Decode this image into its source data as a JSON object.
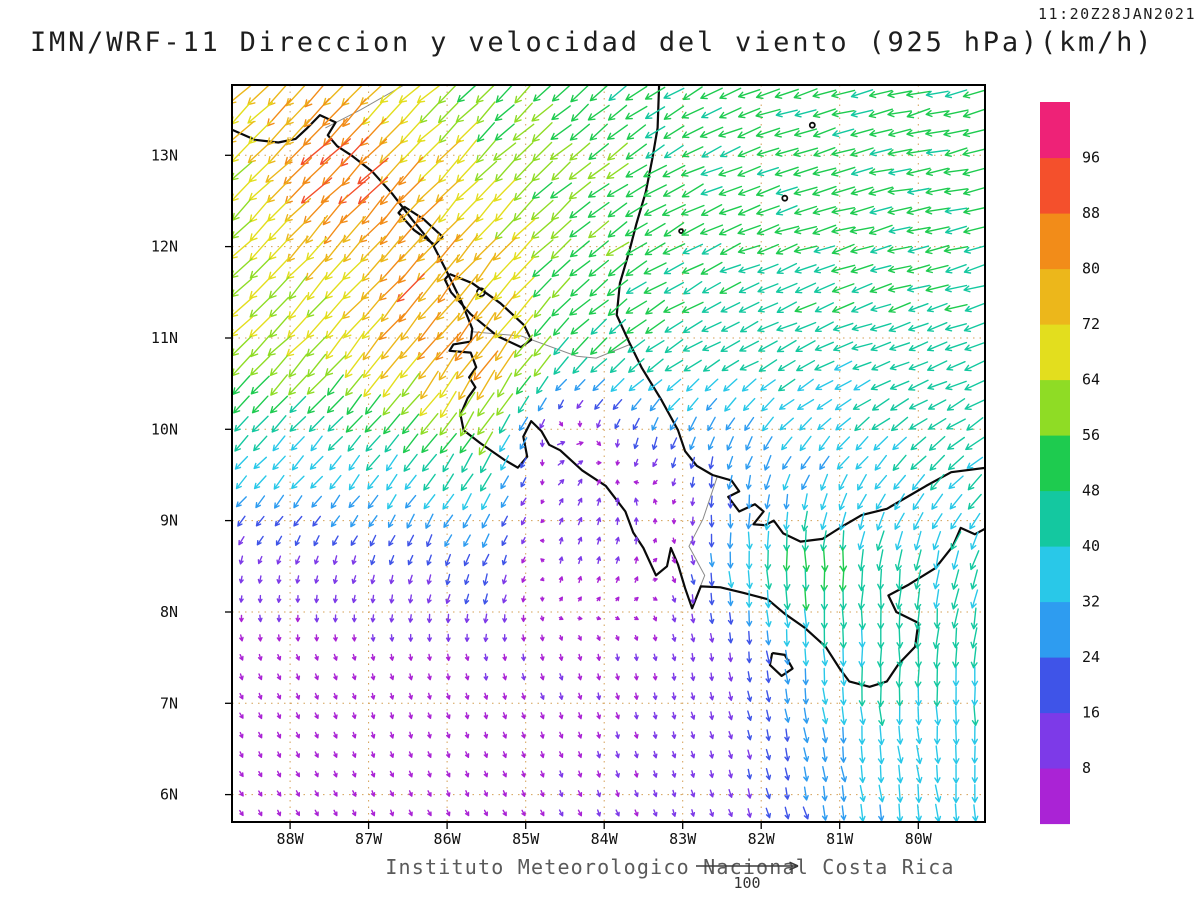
{
  "header": {
    "timestamp": "11:20Z28JAN2021",
    "title": "IMN/WRF-11 Direccion y velocidad del viento (925 hPa)(km/h)"
  },
  "footer": {
    "caption": "Instituto Meteorologico Nacional Costa Rica",
    "reference_arrow_label": "100"
  },
  "axes": {
    "lon_min": -88.74,
    "lon_max": -79.15,
    "lat_min": 5.7,
    "lat_max": 13.77,
    "lat_ticks": [
      {
        "label": "13N",
        "lat": 13
      },
      {
        "label": "12N",
        "lat": 12
      },
      {
        "label": "11N",
        "lat": 11
      },
      {
        "label": "10N",
        "lat": 10
      },
      {
        "label": "9N",
        "lat": 9
      },
      {
        "label": "8N",
        "lat": 8
      },
      {
        "label": "7N",
        "lat": 7
      },
      {
        "label": "6N",
        "lat": 6
      }
    ],
    "lon_ticks": [
      {
        "label": "88W",
        "lon": -88
      },
      {
        "label": "87W",
        "lon": -87
      },
      {
        "label": "86W",
        "lon": -86
      },
      {
        "label": "85W",
        "lon": -85
      },
      {
        "label": "84W",
        "lon": -84
      },
      {
        "label": "83W",
        "lon": -83
      },
      {
        "label": "82W",
        "lon": -82
      },
      {
        "label": "81W",
        "lon": -81
      },
      {
        "label": "80W",
        "lon": -80
      }
    ]
  },
  "colorbar": {
    "labels_top_to_bottom": [
      "96",
      "88",
      "80",
      "72",
      "64",
      "56",
      "48",
      "40",
      "32",
      "24",
      "16",
      "8"
    ],
    "thresholds_kmh": [
      8,
      16,
      24,
      32,
      40,
      48,
      56,
      64,
      72,
      80,
      88,
      96
    ],
    "colors_bottom_to_top": [
      "#aa23d5",
      "#7d3ae8",
      "#3f54e8",
      "#2e9cf0",
      "#29c8e8",
      "#14c8a0",
      "#1ecb4f",
      "#8fdc25",
      "#e3de1e",
      "#ecb71b",
      "#f28c19",
      "#f4502c",
      "#ee2277"
    ]
  },
  "chart_data": {
    "type": "vector_field",
    "title": "IMN/WRF-11 Direccion y velocidad del viento (925 hPa)(km/h)",
    "time": "11:20Z28JAN2021",
    "units": "km/h",
    "pressure_level_hPa": 925,
    "speed_scale_reference": 100,
    "lon_range": [
      -88.74,
      -79.15
    ],
    "lat_range": [
      5.7,
      13.77
    ],
    "grid": {
      "lons": [
        -88.7,
        -87.5,
        -86.5,
        -85.5,
        -84.5,
        -83.5,
        -82.5,
        -81.5,
        -80.5,
        -79.2
      ],
      "lats_north_to_south": [
        13.75,
        12.75,
        11.75,
        10.75,
        9.9,
        9.2,
        8.5,
        7.5,
        6.5,
        5.7
      ],
      "speed_kmh": [
        [
          76,
          80,
          64,
          56,
          52,
          50,
          50,
          50,
          50,
          50
        ],
        [
          60,
          94,
          80,
          64,
          56,
          52,
          50,
          50,
          50,
          50
        ],
        [
          64,
          68,
          84,
          72,
          56,
          52,
          48,
          48,
          48,
          48
        ],
        [
          60,
          64,
          76,
          82,
          48,
          44,
          42,
          42,
          44,
          44
        ],
        [
          40,
          42,
          48,
          56,
          14,
          24,
          28,
          34,
          40,
          44
        ],
        [
          28,
          30,
          34,
          36,
          12,
          10,
          24,
          32,
          36,
          40
        ],
        [
          10,
          12,
          16,
          22,
          10,
          8,
          30,
          56,
          44,
          40
        ],
        [
          7,
          7,
          7,
          8,
          8,
          8,
          12,
          32,
          44,
          42
        ],
        [
          7,
          7,
          7,
          7,
          8,
          8,
          10,
          26,
          36,
          36
        ],
        [
          7,
          7,
          7,
          7,
          8,
          8,
          10,
          24,
          34,
          34
        ]
      ],
      "direction_toward_deg_ccw_from_east": [
        [
          225,
          225,
          222,
          225,
          222,
          215,
          205,
          198,
          195,
          195
        ],
        [
          225,
          225,
          226,
          225,
          220,
          212,
          202,
          196,
          192,
          192
        ],
        [
          225,
          228,
          230,
          230,
          222,
          212,
          205,
          200,
          196,
          196
        ],
        [
          225,
          228,
          232,
          236,
          228,
          215,
          210,
          205,
          200,
          200
        ],
        [
          226,
          228,
          232,
          238,
          30,
          250,
          250,
          230,
          220,
          215
        ],
        [
          230,
          232,
          235,
          240,
          60,
          100,
          268,
          258,
          240,
          230
        ],
        [
          258,
          255,
          252,
          250,
          80,
          70,
          275,
          272,
          265,
          252
        ],
        [
          292,
          288,
          283,
          281,
          286,
          281,
          281,
          276,
          271,
          266
        ],
        [
          300,
          296,
          291,
          291,
          291,
          286,
          286,
          281,
          276,
          271
        ],
        [
          301,
          300,
          296,
          296,
          296,
          291,
          291,
          286,
          281,
          276
        ]
      ]
    },
    "map": {
      "coastlines": [
        [
          [
            -88.74,
            13.28
          ],
          [
            -88.45,
            13.17
          ],
          [
            -88.15,
            13.14
          ],
          [
            -87.93,
            13.18
          ],
          [
            -87.78,
            13.3
          ],
          [
            -87.62,
            13.44
          ],
          [
            -87.42,
            13.36
          ],
          [
            -87.52,
            13.22
          ],
          [
            -87.4,
            13.1
          ],
          [
            -87.22,
            13.0
          ],
          [
            -86.95,
            12.82
          ],
          [
            -86.7,
            12.58
          ],
          [
            -86.45,
            12.3
          ],
          [
            -86.18,
            12.02
          ],
          [
            -86.0,
            11.72
          ],
          [
            -85.82,
            11.4
          ],
          [
            -85.68,
            11.1
          ],
          [
            -85.7,
            10.96
          ],
          [
            -85.92,
            10.93
          ],
          [
            -85.97,
            10.86
          ],
          [
            -85.7,
            10.84
          ],
          [
            -85.63,
            10.68
          ],
          [
            -85.72,
            10.57
          ],
          [
            -85.64,
            10.46
          ],
          [
            -85.74,
            10.34
          ],
          [
            -85.83,
            10.16
          ],
          [
            -85.79,
            9.99
          ],
          [
            -85.58,
            9.85
          ],
          [
            -85.28,
            9.67
          ],
          [
            -85.1,
            9.58
          ],
          [
            -84.98,
            9.7
          ],
          [
            -85.03,
            9.92
          ],
          [
            -84.93,
            10.09
          ],
          [
            -84.8,
            9.98
          ],
          [
            -84.7,
            9.83
          ],
          [
            -84.56,
            9.77
          ],
          [
            -84.28,
            9.55
          ],
          [
            -83.98,
            9.38
          ],
          [
            -83.73,
            9.1
          ],
          [
            -83.63,
            8.87
          ],
          [
            -83.5,
            8.7
          ],
          [
            -83.34,
            8.4
          ],
          [
            -83.2,
            8.5
          ],
          [
            -83.15,
            8.7
          ],
          [
            -83.06,
            8.52
          ],
          [
            -82.97,
            8.26
          ],
          [
            -82.88,
            8.04
          ],
          [
            -82.77,
            8.28
          ],
          [
            -82.52,
            8.27
          ],
          [
            -82.23,
            8.21
          ],
          [
            -81.92,
            8.14
          ],
          [
            -81.7,
            7.98
          ],
          [
            -81.45,
            7.83
          ],
          [
            -81.18,
            7.62
          ],
          [
            -81.0,
            7.38
          ],
          [
            -80.88,
            7.24
          ],
          [
            -80.62,
            7.18
          ],
          [
            -80.4,
            7.24
          ],
          [
            -80.25,
            7.43
          ],
          [
            -80.04,
            7.62
          ],
          [
            -80.0,
            7.88
          ],
          [
            -80.28,
            8.0
          ],
          [
            -80.38,
            8.18
          ],
          [
            -80.12,
            8.3
          ],
          [
            -79.78,
            8.48
          ],
          [
            -79.56,
            8.72
          ],
          [
            -79.46,
            8.92
          ],
          [
            -79.28,
            8.85
          ],
          [
            -79.13,
            8.92
          ]
        ],
        [
          [
            -79.13,
            9.58
          ],
          [
            -79.58,
            9.53
          ],
          [
            -79.9,
            9.38
          ],
          [
            -80.12,
            9.27
          ],
          [
            -80.4,
            9.13
          ],
          [
            -80.72,
            9.06
          ],
          [
            -80.98,
            8.93
          ],
          [
            -81.22,
            8.8
          ],
          [
            -81.5,
            8.77
          ],
          [
            -81.72,
            8.86
          ],
          [
            -81.84,
            9.0
          ],
          [
            -81.95,
            8.95
          ],
          [
            -82.1,
            8.96
          ],
          [
            -81.97,
            9.1
          ],
          [
            -82.08,
            9.18
          ],
          [
            -82.28,
            9.1
          ],
          [
            -82.42,
            9.26
          ],
          [
            -82.28,
            9.32
          ],
          [
            -82.38,
            9.44
          ],
          [
            -82.62,
            9.5
          ],
          [
            -82.82,
            9.6
          ],
          [
            -82.97,
            9.76
          ],
          [
            -83.06,
            9.99
          ],
          [
            -83.27,
            10.32
          ],
          [
            -83.52,
            10.67
          ],
          [
            -83.68,
            10.95
          ],
          [
            -83.84,
            11.25
          ],
          [
            -83.8,
            11.6
          ],
          [
            -83.68,
            11.95
          ],
          [
            -83.59,
            12.25
          ],
          [
            -83.47,
            12.6
          ],
          [
            -83.39,
            12.95
          ],
          [
            -83.32,
            13.3
          ],
          [
            -83.3,
            13.77
          ]
        ],
        [
          [
            -85.97,
            11.7
          ],
          [
            -85.68,
            11.6
          ],
          [
            -85.32,
            11.38
          ],
          [
            -85.02,
            11.14
          ],
          [
            -84.93,
            10.98
          ],
          [
            -85.06,
            10.9
          ],
          [
            -85.36,
            11.02
          ],
          [
            -85.7,
            11.26
          ],
          [
            -85.95,
            11.5
          ],
          [
            -86.03,
            11.64
          ],
          [
            -85.97,
            11.7
          ]
        ],
        [
          [
            -86.55,
            12.44
          ],
          [
            -86.3,
            12.3
          ],
          [
            -86.06,
            12.11
          ],
          [
            -86.16,
            12.02
          ],
          [
            -86.42,
            12.18
          ],
          [
            -86.62,
            12.37
          ],
          [
            -86.55,
            12.44
          ]
        ],
        [
          [
            -81.86,
            7.55
          ],
          [
            -81.7,
            7.53
          ],
          [
            -81.6,
            7.38
          ],
          [
            -81.74,
            7.3
          ],
          [
            -81.89,
            7.42
          ],
          [
            -81.86,
            7.55
          ]
        ]
      ],
      "islands": [
        [
          -85.57,
          11.5,
          4
        ],
        [
          -81.7,
          12.53,
          2.5
        ],
        [
          -81.35,
          13.33,
          2.5
        ],
        [
          -83.02,
          12.17,
          2
        ]
      ],
      "borders": [
        [
          [
            -87.55,
            13.3
          ],
          [
            -87.1,
            13.5
          ],
          [
            -86.55,
            13.77
          ]
        ],
        [
          [
            -85.7,
            11.07
          ],
          [
            -85.05,
            11.02
          ],
          [
            -84.35,
            10.8
          ],
          [
            -84.1,
            10.78
          ],
          [
            -83.67,
            10.93
          ]
        ],
        [
          [
            -82.88,
            8.05
          ],
          [
            -82.72,
            8.4
          ],
          [
            -82.92,
            8.72
          ],
          [
            -82.74,
            9.02
          ],
          [
            -82.56,
            9.48
          ]
        ]
      ]
    }
  }
}
